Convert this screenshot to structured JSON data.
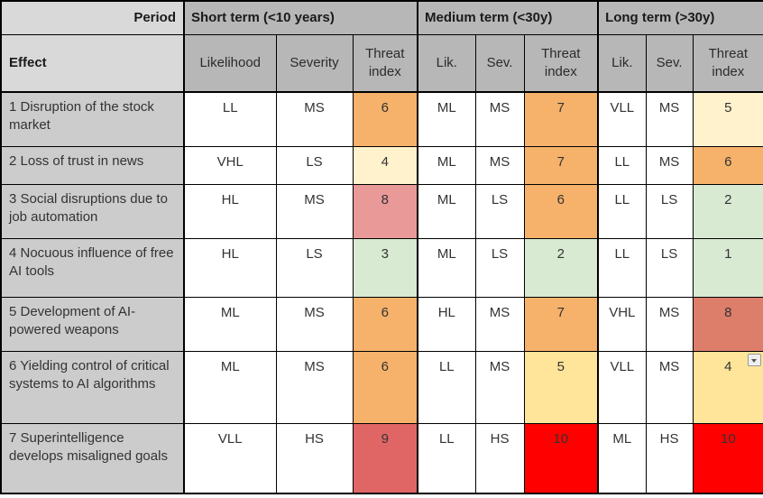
{
  "table": {
    "header": {
      "period_label": "Period",
      "effect_label": "Effect",
      "groups": [
        {
          "label": "Short term (<10 years)",
          "likelihood": "Likelihood",
          "severity": "Severity",
          "threat": "Threat index"
        },
        {
          "label": "Medium term (<30y)",
          "likelihood": "Lik.",
          "severity": "Sev.",
          "threat": "Threat index"
        },
        {
          "label": "Long term (>30y)",
          "likelihood": "Lik.",
          "severity": "Sev.",
          "threat": "Threat index"
        }
      ]
    },
    "rows": [
      {
        "effect": "1 Disruption of the stock market",
        "short": {
          "likelihood": "LL",
          "severity": "MS",
          "threat": "6",
          "threat_color": "#f6b26b"
        },
        "medium": {
          "likelihood": "ML",
          "severity": "MS",
          "threat": "7",
          "threat_color": "#f6b26b"
        },
        "long": {
          "likelihood": "VLL",
          "severity": "MS",
          "threat": "5",
          "threat_color": "#fff2cc"
        }
      },
      {
        "effect": "2 Loss of trust in news",
        "short": {
          "likelihood": "VHL",
          "severity": "LS",
          "threat": "4",
          "threat_color": "#fff2cc"
        },
        "medium": {
          "likelihood": "ML",
          "severity": "MS",
          "threat": "7",
          "threat_color": "#f6b26b"
        },
        "long": {
          "likelihood": "LL",
          "severity": "MS",
          "threat": "6",
          "threat_color": "#f6b26b"
        }
      },
      {
        "effect": "3 Social disruptions due to job automation",
        "short": {
          "likelihood": "HL",
          "severity": "MS",
          "threat": "8",
          "threat_color": "#ea9999"
        },
        "medium": {
          "likelihood": "ML",
          "severity": "LS",
          "threat": "6",
          "threat_color": "#f6b26b"
        },
        "long": {
          "likelihood": "LL",
          "severity": "LS",
          "threat": "2",
          "threat_color": "#d9ead3"
        }
      },
      {
        "effect": "4 Nocuous influence of free AI tools",
        "short": {
          "likelihood": "HL",
          "severity": "LS",
          "threat": "3",
          "threat_color": "#d9ead3"
        },
        "medium": {
          "likelihood": "ML",
          "severity": "LS",
          "threat": "2",
          "threat_color": "#d9ead3"
        },
        "long": {
          "likelihood": "LL",
          "severity": "LS",
          "threat": "1",
          "threat_color": "#d9ead3"
        }
      },
      {
        "effect": "5 Development of AI-powered weapons",
        "short": {
          "likelihood": "ML",
          "severity": "MS",
          "threat": "6",
          "threat_color": "#f6b26b"
        },
        "medium": {
          "likelihood": "HL",
          "severity": "MS",
          "threat": "7",
          "threat_color": "#f6b26b"
        },
        "long": {
          "likelihood": "VHL",
          "severity": "MS",
          "threat": "8",
          "threat_color": "#dd7e6b"
        }
      },
      {
        "effect": "6 Yielding control of critical systems to AI algorithms",
        "short": {
          "likelihood": "ML",
          "severity": "MS",
          "threat": "6",
          "threat_color": "#f6b26b"
        },
        "medium": {
          "likelihood": "LL",
          "severity": "MS",
          "threat": "5",
          "threat_color": "#ffe599"
        },
        "long": {
          "likelihood": "VLL",
          "severity": "MS",
          "threat": "4",
          "threat_color": "#ffe599",
          "has_dropdown": true
        }
      },
      {
        "effect": "7 Superintelligence develops misaligned goals",
        "short": {
          "likelihood": "VLL",
          "severity": "HS",
          "threat": "9",
          "threat_color": "#e06666"
        },
        "medium": {
          "likelihood": "LL",
          "severity": "HS",
          "threat": "10",
          "threat_color": "#ff0000"
        },
        "long": {
          "likelihood": "ML",
          "severity": "HS",
          "threat": "10",
          "threat_color": "#ff0000"
        }
      }
    ],
    "colors": {
      "header_light_gray": "#d9d9d9",
      "header_dark_gray": "#b7b7b7",
      "effect_cell_gray": "#cccccc",
      "border_black": "#000000",
      "threat_orange": "#f6b26b",
      "threat_cream": "#fff2cc",
      "threat_yellow": "#ffe599",
      "threat_light_green": "#d9ead3",
      "threat_pink_red": "#ea9999",
      "threat_salmon": "#dd7e6b",
      "threat_soft_red": "#e06666",
      "threat_bright_red": "#ff0000"
    }
  }
}
